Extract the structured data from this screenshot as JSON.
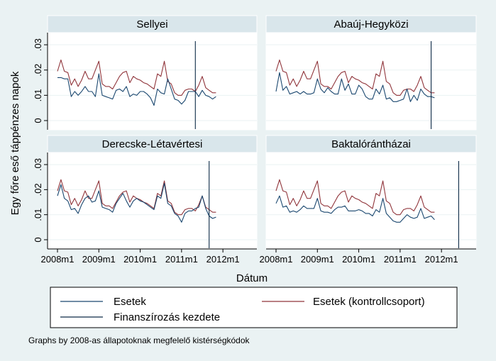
{
  "chart_data": {
    "type": "line",
    "ylabel": "Egy főre eső táppénzes napok",
    "xlabel": "Dátum",
    "x_ticks": [
      "2008m1",
      "2009m1",
      "2010m1",
      "2011m1",
      "2012m1"
    ],
    "y_ticks": [
      "0",
      ".01",
      ".02",
      ".03"
    ],
    "ylim": [
      0,
      0.032
    ],
    "x_range_months": [
      "2008m1",
      "2012m9"
    ],
    "grid": "horizontal",
    "legend_placement": "bottom",
    "legend": {
      "esetek": "Esetek",
      "kontroll": "Esetek (kontrollcsoport)",
      "kezdet": "Finanszírozás kezdete"
    },
    "note": "Graphs by 2008-as állapotoknak megfelelő kistérségkódok",
    "colors": {
      "esetek": "#1a476f",
      "kontroll": "#90353b",
      "kezdet": "#0d2a47",
      "background": "#eaf2f3",
      "title_bar": "#d9e6eb"
    },
    "kontroll_values": [
      0.0195,
      0.024,
      0.0195,
      0.019,
      0.014,
      0.0165,
      0.0135,
      0.016,
      0.0195,
      0.0165,
      0.0165,
      0.02,
      0.0235,
      0.0145,
      0.0135,
      0.0135,
      0.0125,
      0.015,
      0.0175,
      0.019,
      0.0195,
      0.015,
      0.0175,
      0.0165,
      0.016,
      0.015,
      0.0145,
      0.0135,
      0.0125,
      0.0185,
      0.0175,
      0.0235,
      0.0155,
      0.0145,
      0.011,
      0.01,
      0.01,
      0.012,
      0.0125,
      0.0125,
      0.0115,
      0.014,
      0.0175,
      0.013,
      0.012,
      0.011,
      0.011
    ],
    "panels": [
      {
        "title": "Sellyei",
        "start_month": "2011m5",
        "esetek_values": [
          0.017,
          0.017,
          0.0165,
          0.0165,
          0.0095,
          0.0115,
          0.01,
          0.0115,
          0.0135,
          0.0115,
          0.0115,
          0.0095,
          0.0185,
          0.01,
          0.0095,
          0.009,
          0.0085,
          0.012,
          0.0125,
          0.0115,
          0.0135,
          0.0095,
          0.0105,
          0.01,
          0.0115,
          0.0115,
          0.0105,
          0.009,
          0.006,
          0.0125,
          0.011,
          0.0105,
          0.0165,
          0.0125,
          0.0085,
          0.008,
          0.0065,
          0.008,
          0.0115,
          0.0115,
          0.0115,
          0.0095,
          0.012,
          0.01,
          0.0095,
          0.0085,
          0.0095
        ]
      },
      {
        "title": "Abaúj-Hegyközi",
        "start_month": "2011m10",
        "esetek_values": [
          0.0115,
          0.019,
          0.012,
          0.0135,
          0.0105,
          0.011,
          0.0115,
          0.0105,
          0.0115,
          0.0105,
          0.0105,
          0.011,
          0.0165,
          0.0125,
          0.011,
          0.013,
          0.0115,
          0.0105,
          0.0105,
          0.0165,
          0.012,
          0.0145,
          0.0105,
          0.0105,
          0.014,
          0.0125,
          0.0095,
          0.0085,
          0.0085,
          0.0125,
          0.0105,
          0.014,
          0.0085,
          0.009,
          0.0075,
          0.0075,
          0.008,
          0.0085,
          0.0125,
          0.0075,
          0.01,
          0.008,
          0.0125,
          0.0105,
          0.0095,
          0.0095,
          0.009
        ]
      },
      {
        "title": "Derecske-Létavértesi",
        "start_month": "2011m9",
        "esetek_values": [
          0.0175,
          0.022,
          0.0165,
          0.0155,
          0.012,
          0.0125,
          0.0105,
          0.014,
          0.0165,
          0.0175,
          0.015,
          0.0155,
          0.0195,
          0.013,
          0.0125,
          0.012,
          0.011,
          0.0145,
          0.0165,
          0.0185,
          0.0155,
          0.013,
          0.0155,
          0.0165,
          0.0155,
          0.015,
          0.014,
          0.013,
          0.012,
          0.0175,
          0.0165,
          0.0225,
          0.0145,
          0.0135,
          0.0105,
          0.0095,
          0.007,
          0.0105,
          0.0115,
          0.0115,
          0.0125,
          0.013,
          0.0175,
          0.0125,
          0.0095,
          0.0085,
          0.009
        ]
      },
      {
        "title": "Baktalórántházai",
        "start_month": "2012m6",
        "esetek_values": [
          0.0145,
          0.0175,
          0.013,
          0.0135,
          0.011,
          0.0115,
          0.011,
          0.012,
          0.0135,
          0.0125,
          0.0125,
          0.0125,
          0.0165,
          0.0115,
          0.011,
          0.011,
          0.0105,
          0.012,
          0.013,
          0.013,
          0.0135,
          0.0115,
          0.0115,
          0.0115,
          0.012,
          0.0115,
          0.0105,
          0.0105,
          0.0095,
          0.012,
          0.011,
          0.0165,
          0.0105,
          0.009,
          0.0075,
          0.007,
          0.007,
          0.0085,
          0.01,
          0.009,
          0.0085,
          0.009,
          0.0125,
          0.0085,
          0.009,
          0.0095,
          0.008
        ]
      }
    ]
  }
}
